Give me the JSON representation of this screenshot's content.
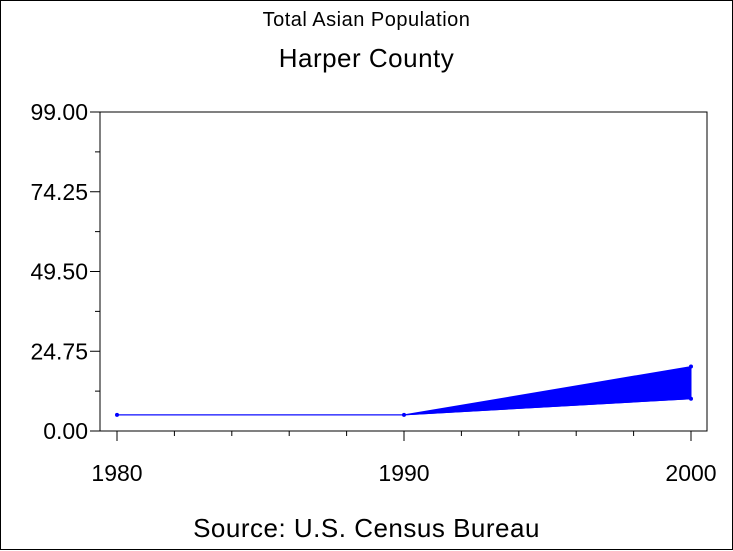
{
  "titles": {
    "line1": "Total Asian Population",
    "line2": "Harper County"
  },
  "footnote": "Source: U.S. Census Bureau",
  "colors": {
    "series": "#0000ff",
    "axis": "#000000",
    "background": "#ffffff"
  },
  "chart_data": {
    "type": "line",
    "xlabel": "",
    "ylabel": "",
    "xlim": [
      1980,
      2000
    ],
    "ylim": [
      0,
      99
    ],
    "x_ticks": [
      "1980",
      "1990",
      "2000"
    ],
    "x_minor_step": 2,
    "y_ticks": [
      "0.00",
      "24.75",
      "49.50",
      "74.25",
      "99.00"
    ],
    "y_minor_step": 12.375,
    "grid": false,
    "legend": "none",
    "series": [
      {
        "x": [
          1980,
          1990,
          2000
        ],
        "y": [
          5,
          5,
          10
        ],
        "y_upper": [
          5,
          5,
          20
        ]
      }
    ]
  }
}
